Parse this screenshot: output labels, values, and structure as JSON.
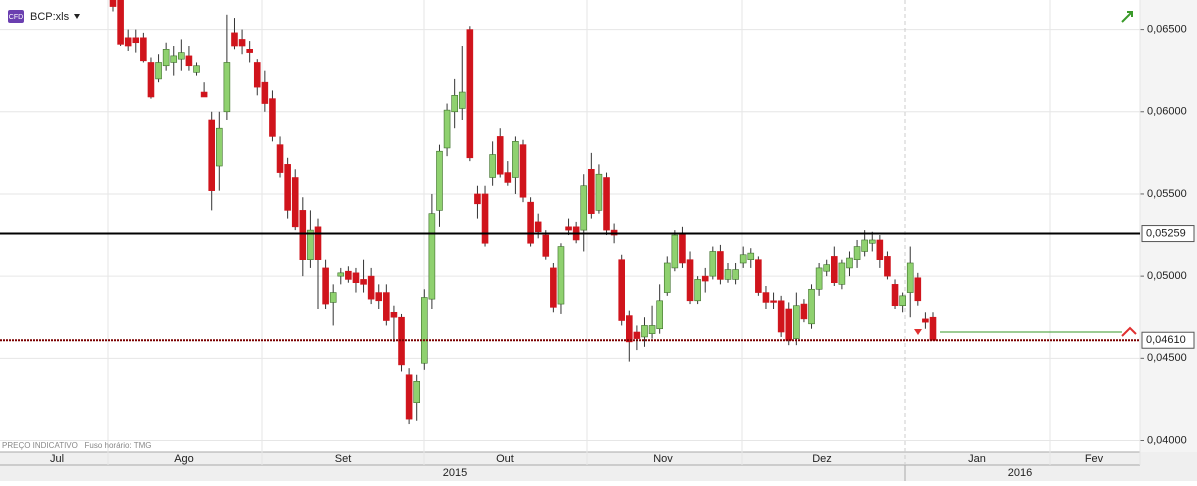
{
  "chart_data": {
    "type": "candlestick",
    "symbol": "BCP:xls",
    "badge": "CFD",
    "footnote": "PREÇO INDICATIVO   Fuso horário: TMG",
    "months": [
      "Jul",
      "Ago",
      "Set",
      "Out",
      "Nov",
      "Dez",
      "Jan",
      "Fev"
    ],
    "years": [
      "2015",
      "2016"
    ],
    "ylim": [
      0.0393,
      0.0668
    ],
    "yticks": [
      {
        "value": 0.04,
        "label": "0,04000"
      },
      {
        "value": 0.045,
        "label": "0,04500"
      },
      {
        "value": 0.05,
        "label": "0,05000"
      },
      {
        "value": 0.055,
        "label": "0,05500"
      },
      {
        "value": 0.06,
        "label": "0,06000"
      },
      {
        "value": 0.065,
        "label": "0,06500"
      }
    ],
    "levels": [
      {
        "value": 0.05259,
        "label": "0,05259",
        "color": "#000000"
      },
      {
        "value": 0.0461,
        "label": "0,04610",
        "color": "#7a0000"
      }
    ],
    "order_line": 0.0466,
    "up_color": "#8fd16f",
    "down_color": "#d0141c",
    "ohlc": [
      [
        0.0668,
        0.0668,
        0.0661,
        0.0664
      ],
      [
        0.0668,
        0.0668,
        0.064,
        0.0641
      ],
      [
        0.0645,
        0.065,
        0.0637,
        0.064
      ],
      [
        0.0645,
        0.065,
        0.0636,
        0.0642
      ],
      [
        0.0645,
        0.0648,
        0.063,
        0.0631
      ],
      [
        0.063,
        0.0633,
        0.0608,
        0.0609
      ],
      [
        0.062,
        0.0635,
        0.0618,
        0.063
      ],
      [
        0.0628,
        0.0642,
        0.0625,
        0.0638
      ],
      [
        0.063,
        0.064,
        0.0622,
        0.0634
      ],
      [
        0.0632,
        0.0644,
        0.0625,
        0.0636
      ],
      [
        0.0634,
        0.064,
        0.0625,
        0.0628
      ],
      [
        0.0624,
        0.063,
        0.0622,
        0.0628
      ],
      [
        0.0612,
        0.0618,
        0.061,
        0.0609
      ],
      [
        0.0595,
        0.06,
        0.054,
        0.0552
      ],
      [
        0.0567,
        0.06,
        0.0552,
        0.059
      ],
      [
        0.06,
        0.0659,
        0.0595,
        0.063
      ],
      [
        0.0648,
        0.0657,
        0.0638,
        0.064
      ],
      [
        0.0644,
        0.065,
        0.0635,
        0.064
      ],
      [
        0.0638,
        0.0643,
        0.063,
        0.0636
      ],
      [
        0.063,
        0.0632,
        0.061,
        0.0615
      ],
      [
        0.0618,
        0.0625,
        0.06,
        0.0605
      ],
      [
        0.0608,
        0.0613,
        0.0582,
        0.0585
      ],
      [
        0.058,
        0.0585,
        0.056,
        0.0563
      ],
      [
        0.0568,
        0.0572,
        0.0535,
        0.054
      ],
      [
        0.056,
        0.0565,
        0.0528,
        0.053
      ],
      [
        0.054,
        0.0548,
        0.05,
        0.051
      ],
      [
        0.051,
        0.054,
        0.0505,
        0.0528
      ],
      [
        0.053,
        0.0535,
        0.048,
        0.051
      ],
      [
        0.0505,
        0.051,
        0.048,
        0.0483
      ],
      [
        0.0484,
        0.0495,
        0.047,
        0.049
      ],
      [
        0.05,
        0.0505,
        0.0495,
        0.0502
      ],
      [
        0.0503,
        0.0506,
        0.0496,
        0.0498
      ],
      [
        0.0502,
        0.0505,
        0.049,
        0.0496
      ],
      [
        0.0498,
        0.051,
        0.049,
        0.0495
      ],
      [
        0.05,
        0.0505,
        0.0483,
        0.0486
      ],
      [
        0.049,
        0.0495,
        0.048,
        0.0485
      ],
      [
        0.049,
        0.0495,
        0.047,
        0.0473
      ],
      [
        0.0478,
        0.0482,
        0.046,
        0.0475
      ],
      [
        0.0475,
        0.0477,
        0.0442,
        0.0446
      ],
      [
        0.044,
        0.0444,
        0.041,
        0.0413
      ],
      [
        0.0423,
        0.044,
        0.0412,
        0.0436
      ],
      [
        0.0447,
        0.0492,
        0.0443,
        0.0487
      ],
      [
        0.0486,
        0.055,
        0.048,
        0.0538
      ],
      [
        0.054,
        0.058,
        0.053,
        0.0576
      ],
      [
        0.0578,
        0.0605,
        0.0573,
        0.0601
      ],
      [
        0.06,
        0.062,
        0.059,
        0.061
      ],
      [
        0.0602,
        0.064,
        0.0595,
        0.0612
      ],
      [
        0.065,
        0.0652,
        0.057,
        0.0572
      ],
      [
        0.055,
        0.0555,
        0.0535,
        0.0544
      ],
      [
        0.055,
        0.0555,
        0.0518,
        0.052
      ],
      [
        0.056,
        0.0582,
        0.0555,
        0.0574
      ],
      [
        0.0585,
        0.059,
        0.056,
        0.0562
      ],
      [
        0.0563,
        0.057,
        0.0555,
        0.0557
      ],
      [
        0.056,
        0.0585,
        0.055,
        0.0582
      ],
      [
        0.058,
        0.0583,
        0.0545,
        0.0548
      ],
      [
        0.0545,
        0.0548,
        0.0518,
        0.052
      ],
      [
        0.0533,
        0.0538,
        0.0523,
        0.0527
      ],
      [
        0.0525,
        0.0528,
        0.051,
        0.0512
      ],
      [
        0.0505,
        0.0508,
        0.0478,
        0.0481
      ],
      [
        0.0483,
        0.052,
        0.0477,
        0.0518
      ],
      [
        0.053,
        0.0535,
        0.0525,
        0.0528
      ],
      [
        0.053,
        0.0533,
        0.052,
        0.0522
      ],
      [
        0.0528,
        0.0562,
        0.0515,
        0.0555
      ],
      [
        0.0565,
        0.0575,
        0.0535,
        0.0538
      ],
      [
        0.054,
        0.0568,
        0.0538,
        0.0562
      ],
      [
        0.056,
        0.0563,
        0.0525,
        0.0528
      ],
      [
        0.0528,
        0.0532,
        0.052,
        0.0525
      ],
      [
        0.051,
        0.0513,
        0.047,
        0.0473
      ],
      [
        0.0476,
        0.0479,
        0.0448,
        0.046
      ],
      [
        0.0466,
        0.047,
        0.0455,
        0.0462
      ],
      [
        0.0463,
        0.0475,
        0.0457,
        0.047
      ],
      [
        0.0465,
        0.0482,
        0.0462,
        0.047
      ],
      [
        0.0468,
        0.0495,
        0.0465,
        0.0485
      ],
      [
        0.049,
        0.0512,
        0.0488,
        0.0508
      ],
      [
        0.0505,
        0.0528,
        0.0503,
        0.0525
      ],
      [
        0.0526,
        0.053,
        0.0505,
        0.0508
      ],
      [
        0.051,
        0.0515,
        0.0483,
        0.0485
      ],
      [
        0.0485,
        0.05,
        0.0483,
        0.0498
      ],
      [
        0.05,
        0.0505,
        0.049,
        0.0497
      ],
      [
        0.05,
        0.0518,
        0.0498,
        0.0515
      ],
      [
        0.0515,
        0.0519,
        0.0495,
        0.0498
      ],
      [
        0.0498,
        0.0508,
        0.0496,
        0.0504
      ],
      [
        0.0498,
        0.0508,
        0.0495,
        0.0504
      ],
      [
        0.0508,
        0.0518,
        0.0505,
        0.0513
      ],
      [
        0.051,
        0.0517,
        0.0505,
        0.0514
      ],
      [
        0.051,
        0.0512,
        0.0488,
        0.049
      ],
      [
        0.049,
        0.0494,
        0.048,
        0.0484
      ],
      [
        0.0485,
        0.049,
        0.048,
        0.0484
      ],
      [
        0.0485,
        0.0488,
        0.0463,
        0.0466
      ],
      [
        0.048,
        0.0484,
        0.0458,
        0.0461
      ],
      [
        0.0462,
        0.049,
        0.0458,
        0.0482
      ],
      [
        0.0483,
        0.0486,
        0.0472,
        0.0474
      ],
      [
        0.0471,
        0.0495,
        0.0468,
        0.0492
      ],
      [
        0.0492,
        0.0508,
        0.0488,
        0.0505
      ],
      [
        0.0503,
        0.051,
        0.05,
        0.0507
      ],
      [
        0.0512,
        0.0518,
        0.0494,
        0.0496
      ],
      [
        0.0495,
        0.051,
        0.0492,
        0.0508
      ],
      [
        0.0505,
        0.0515,
        0.05,
        0.0511
      ],
      [
        0.051,
        0.0522,
        0.0505,
        0.0518
      ],
      [
        0.0515,
        0.0528,
        0.0512,
        0.0522
      ],
      [
        0.052,
        0.0527,
        0.0515,
        0.0522
      ],
      [
        0.0522,
        0.0525,
        0.0505,
        0.051
      ],
      [
        0.0512,
        0.0515,
        0.0498,
        0.05
      ],
      [
        0.0495,
        0.0498,
        0.048,
        0.0482
      ],
      [
        0.0482,
        0.049,
        0.0478,
        0.0488
      ],
      [
        0.049,
        0.0518,
        0.0475,
        0.0508
      ],
      [
        0.0499,
        0.0502,
        0.0482,
        0.0485
      ],
      [
        0.0474,
        0.0478,
        0.0468,
        0.0472
      ],
      [
        0.0475,
        0.0478,
        0.0461,
        0.0461
      ]
    ]
  }
}
